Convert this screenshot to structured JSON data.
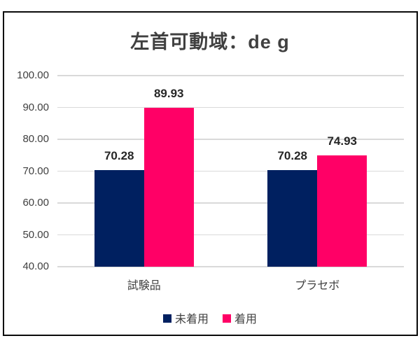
{
  "window": {
    "background": "#FFFFFF",
    "border_color": "#0A0A0A"
  },
  "chart_data": {
    "type": "bar",
    "title": "左首可動域：de g",
    "categories": [
      "試験品",
      "プラセボ"
    ],
    "series": [
      {
        "name": "未着用",
        "color": "#002060",
        "values": [
          70.28,
          70.28
        ],
        "value_labels": [
          "70.28",
          "70.28"
        ]
      },
      {
        "name": "着用",
        "color": "#FF0066",
        "values": [
          89.93,
          74.93
        ],
        "value_labels": [
          "89.93",
          "74.93"
        ]
      }
    ],
    "xlabel": "",
    "ylabel": "",
    "ylim": [
      40,
      100
    ],
    "yticks": [
      40,
      50,
      60,
      70,
      80,
      90,
      100
    ],
    "ytick_labels": [
      "40.00",
      "50.00",
      "60.00",
      "70.00",
      "80.00",
      "90.00",
      "100.00"
    ],
    "grid": true,
    "gridline_color": "#D9D9D9",
    "legend_position": "bottom",
    "legend": [
      "未着用",
      "着用"
    ],
    "axis_text_color": "#404040",
    "data_label_color": "#262626",
    "title_color": "#404040"
  }
}
